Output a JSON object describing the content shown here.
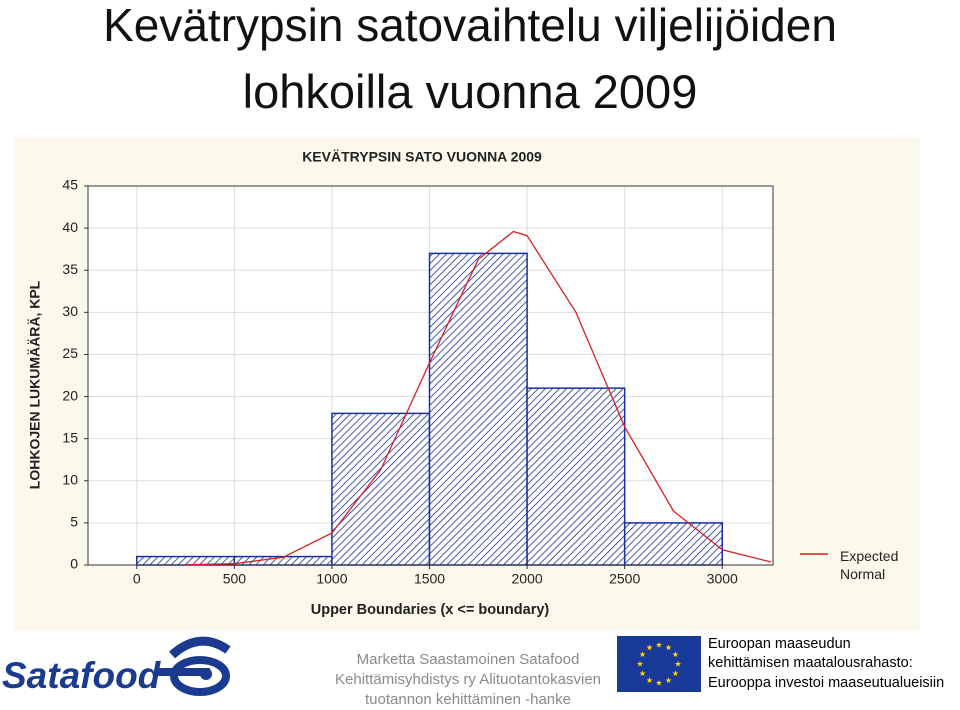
{
  "title_lines": [
    "Kevätrypsin satovaihtelu viljelijöiden",
    "lohkoilla vuonna 2009"
  ],
  "chart_data": {
    "type": "histogram",
    "title": "KEVÄTRYPSIN SATO VUONNA 2009",
    "x_label": "Upper Boundaries (x <= boundary)",
    "y_label": "LOHKOJEN LUKUMÄÄRÄ, KPL",
    "bins": [
      0,
      500,
      1000,
      1500,
      2000,
      2500,
      3000
    ],
    "values": [
      1,
      1,
      18,
      37,
      21,
      5
    ],
    "color": "#1a2fa0",
    "curve": {
      "name": "Expected Normal",
      "color": "#d62020",
      "x": [
        250,
        500,
        750,
        1000,
        1250,
        1500,
        1750,
        1930,
        2000,
        2250,
        2500,
        2750,
        3000,
        3250
      ],
      "values": [
        0.02,
        0.16,
        0.92,
        3.8,
        11.3,
        24.0,
        36.3,
        39.6,
        39.1,
        30.0,
        16.4,
        6.4,
        1.8,
        0.36
      ]
    },
    "xlim": [
      -250,
      3260
    ],
    "xticks": [
      0,
      500,
      1000,
      1500,
      2000,
      2500,
      3000
    ],
    "ylim": [
      0,
      45
    ],
    "yticks": [
      0,
      5,
      10,
      15,
      20,
      25,
      30,
      35,
      40,
      45
    ],
    "grid": true
  },
  "footer": {
    "logo": "Satafood",
    "center_lines": [
      "Marketta Saastamoinen Satafood",
      "Kehittämisyhdistys ry Alituotantokasvien",
      "tuotannon kehittäminen -hanke"
    ],
    "right_lines": [
      "Euroopan maaseudun",
      "kehittämisen maatalousrahasto:",
      "Eurooppa investoi maaseutualueisiin"
    ]
  }
}
